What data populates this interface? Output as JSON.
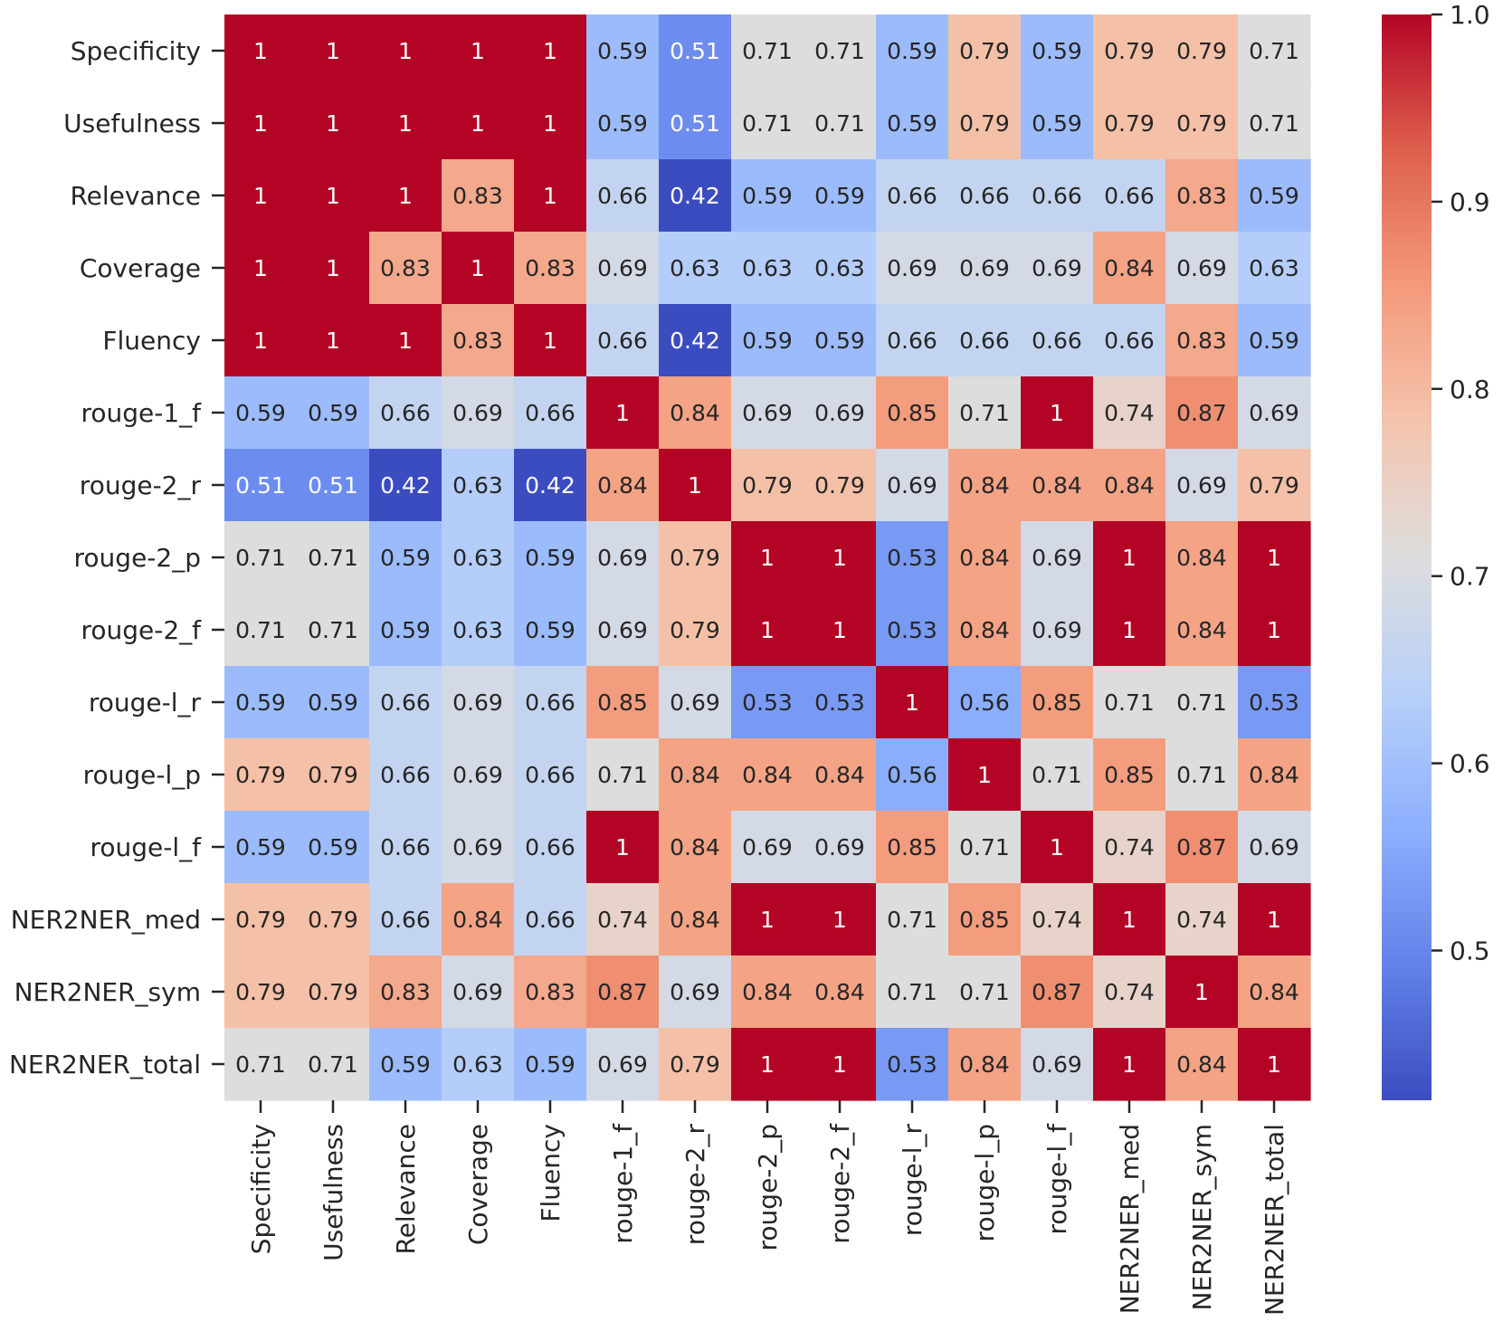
{
  "chart_data": {
    "type": "heatmap",
    "title": "",
    "colormap": "coolwarm",
    "vmin": 0.42,
    "vmax": 1.0,
    "rows": [
      "Specificity",
      "Usefulness",
      "Relevance",
      "Coverage",
      "Fluency",
      "rouge-1_f",
      "rouge-2_r",
      "rouge-2_p",
      "rouge-2_f",
      "rouge-l_r",
      "rouge-l_p",
      "rouge-l_f",
      "NER2NER_med",
      "NER2NER_sym",
      "NER2NER_total"
    ],
    "columns": [
      "Specificity",
      "Usefulness",
      "Relevance",
      "Coverage",
      "Fluency",
      "rouge-1_f",
      "rouge-2_r",
      "rouge-2_p",
      "rouge-2_f",
      "rouge-l_r",
      "rouge-l_p",
      "rouge-l_f",
      "NER2NER_med",
      "NER2NER_sym",
      "NER2NER_total"
    ],
    "values": [
      [
        1,
        1,
        1,
        1,
        1,
        0.59,
        0.51,
        0.71,
        0.71,
        0.59,
        0.79,
        0.59,
        0.79,
        0.79,
        0.71
      ],
      [
        1,
        1,
        1,
        1,
        1,
        0.59,
        0.51,
        0.71,
        0.71,
        0.59,
        0.79,
        0.59,
        0.79,
        0.79,
        0.71
      ],
      [
        1,
        1,
        1,
        0.83,
        1,
        0.66,
        0.42,
        0.59,
        0.59,
        0.66,
        0.66,
        0.66,
        0.66,
        0.83,
        0.59
      ],
      [
        1,
        1,
        0.83,
        1,
        0.83,
        0.69,
        0.63,
        0.63,
        0.63,
        0.69,
        0.69,
        0.69,
        0.84,
        0.69,
        0.63
      ],
      [
        1,
        1,
        1,
        0.83,
        1,
        0.66,
        0.42,
        0.59,
        0.59,
        0.66,
        0.66,
        0.66,
        0.66,
        0.83,
        0.59
      ],
      [
        0.59,
        0.59,
        0.66,
        0.69,
        0.66,
        1,
        0.84,
        0.69,
        0.69,
        0.85,
        0.71,
        1,
        0.74,
        0.87,
        0.69
      ],
      [
        0.51,
        0.51,
        0.42,
        0.63,
        0.42,
        0.84,
        1,
        0.79,
        0.79,
        0.69,
        0.84,
        0.84,
        0.84,
        0.69,
        0.79
      ],
      [
        0.71,
        0.71,
        0.59,
        0.63,
        0.59,
        0.69,
        0.79,
        1,
        1,
        0.53,
        0.84,
        0.69,
        1,
        0.84,
        1
      ],
      [
        0.71,
        0.71,
        0.59,
        0.63,
        0.59,
        0.69,
        0.79,
        1,
        1,
        0.53,
        0.84,
        0.69,
        1,
        0.84,
        1
      ],
      [
        0.59,
        0.59,
        0.66,
        0.69,
        0.66,
        0.85,
        0.69,
        0.53,
        0.53,
        1,
        0.56,
        0.85,
        0.71,
        0.71,
        0.53
      ],
      [
        0.79,
        0.79,
        0.66,
        0.69,
        0.66,
        0.71,
        0.84,
        0.84,
        0.84,
        0.56,
        1,
        0.71,
        0.85,
        0.71,
        0.84
      ],
      [
        0.59,
        0.59,
        0.66,
        0.69,
        0.66,
        1,
        0.84,
        0.69,
        0.69,
        0.85,
        0.71,
        1,
        0.74,
        0.87,
        0.69
      ],
      [
        0.79,
        0.79,
        0.66,
        0.84,
        0.66,
        0.74,
        0.84,
        1,
        1,
        0.71,
        0.85,
        0.74,
        1,
        0.74,
        1
      ],
      [
        0.79,
        0.79,
        0.83,
        0.69,
        0.83,
        0.87,
        0.69,
        0.84,
        0.84,
        0.71,
        0.71,
        0.87,
        0.74,
        1,
        0.84
      ],
      [
        0.71,
        0.71,
        0.59,
        0.63,
        0.59,
        0.69,
        0.79,
        1,
        1,
        0.53,
        0.84,
        0.69,
        1,
        0.84,
        1
      ]
    ],
    "colorbar": {
      "ticks": [
        0.5,
        0.6,
        0.7,
        0.8,
        0.9,
        1.0
      ],
      "tick_labels": [
        "0.5",
        "0.6",
        "0.7",
        "0.8",
        "0.9",
        "1.0"
      ]
    },
    "annotated": true
  }
}
